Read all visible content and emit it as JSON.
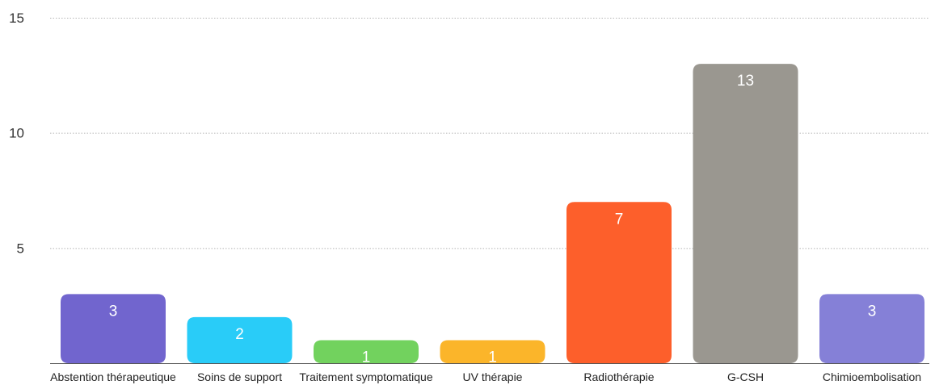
{
  "chart_data": {
    "type": "bar",
    "title": "",
    "xlabel": "",
    "ylabel": "",
    "categories": [
      "Abstention thérapeutique",
      "Soins de support",
      "Traitement symptomatique",
      "UV thérapie",
      "Radiothérapie",
      "G-CSH",
      "Chimioembolisation"
    ],
    "values": [
      3,
      2,
      1,
      1,
      7,
      13,
      3
    ],
    "data_labels": [
      "3",
      "2",
      "1",
      "1",
      "7",
      "13",
      "3"
    ],
    "colors": [
      "#7165CE",
      "#29CCF8",
      "#72D25E",
      "#FBB52A",
      "#FD5F2B",
      "#9A9790",
      "#8580D7"
    ],
    "ylim": [
      0,
      15
    ],
    "yticks": [
      {
        "value": 5,
        "label": "5"
      },
      {
        "value": 10,
        "label": "10"
      },
      {
        "value": 15,
        "label": "15"
      }
    ],
    "grid": true,
    "legend": "none"
  }
}
